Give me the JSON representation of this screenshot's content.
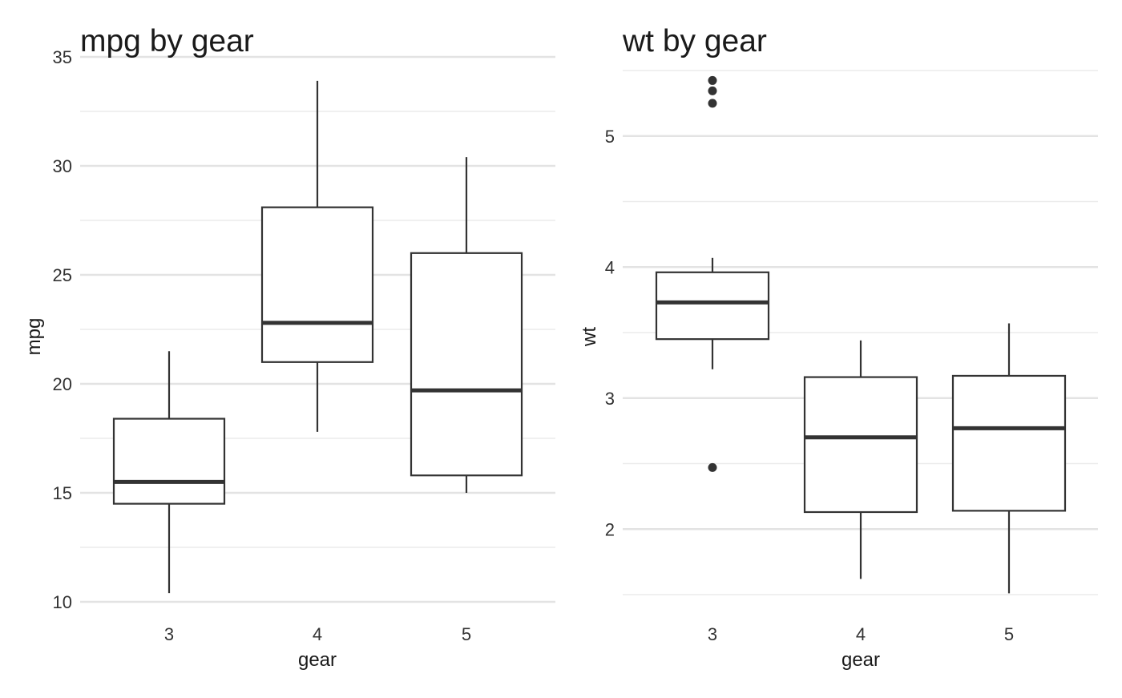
{
  "chart_data": [
    {
      "type": "boxplot",
      "title": "mpg by gear",
      "xlabel": "gear",
      "ylabel": "mpg",
      "categories": [
        "3",
        "4",
        "5"
      ],
      "ylim": [
        10,
        35
      ],
      "yticks": [
        10,
        15,
        20,
        25,
        30,
        35
      ],
      "y_minor_gridlines": [
        12.5,
        17.5,
        22.5,
        27.5,
        32.5
      ],
      "grid": true,
      "boxes": [
        {
          "category": "3",
          "whisker_low": 10.4,
          "q1": 14.5,
          "median": 15.5,
          "q3": 18.4,
          "whisker_high": 21.5,
          "outliers": []
        },
        {
          "category": "4",
          "whisker_low": 17.8,
          "q1": 21.0,
          "median": 22.8,
          "q3": 28.1,
          "whisker_high": 33.9,
          "outliers": []
        },
        {
          "category": "5",
          "whisker_low": 15.0,
          "q1": 15.8,
          "median": 19.7,
          "q3": 26.0,
          "whisker_high": 30.4,
          "outliers": []
        }
      ]
    },
    {
      "type": "boxplot",
      "title": "wt by gear",
      "xlabel": "gear",
      "ylabel": "wt",
      "categories": [
        "3",
        "4",
        "5"
      ],
      "ylim": [
        1.5,
        5.5
      ],
      "yticks": [
        2,
        3,
        4,
        5
      ],
      "y_minor_gridlines": [
        1.5,
        2.5,
        3.5,
        4.5,
        5.5
      ],
      "grid": true,
      "boxes": [
        {
          "category": "3",
          "whisker_low": 3.22,
          "q1": 3.45,
          "median": 3.73,
          "q3": 3.96,
          "whisker_high": 4.07,
          "outliers": [
            2.47,
            5.25,
            5.345,
            5.424
          ]
        },
        {
          "category": "4",
          "whisker_low": 1.62,
          "q1": 2.13,
          "median": 2.7,
          "q3": 3.16,
          "whisker_high": 3.44,
          "outliers": []
        },
        {
          "category": "5",
          "whisker_low": 1.51,
          "q1": 2.14,
          "median": 2.77,
          "q3": 3.17,
          "whisker_high": 3.57,
          "outliers": []
        }
      ]
    }
  ]
}
